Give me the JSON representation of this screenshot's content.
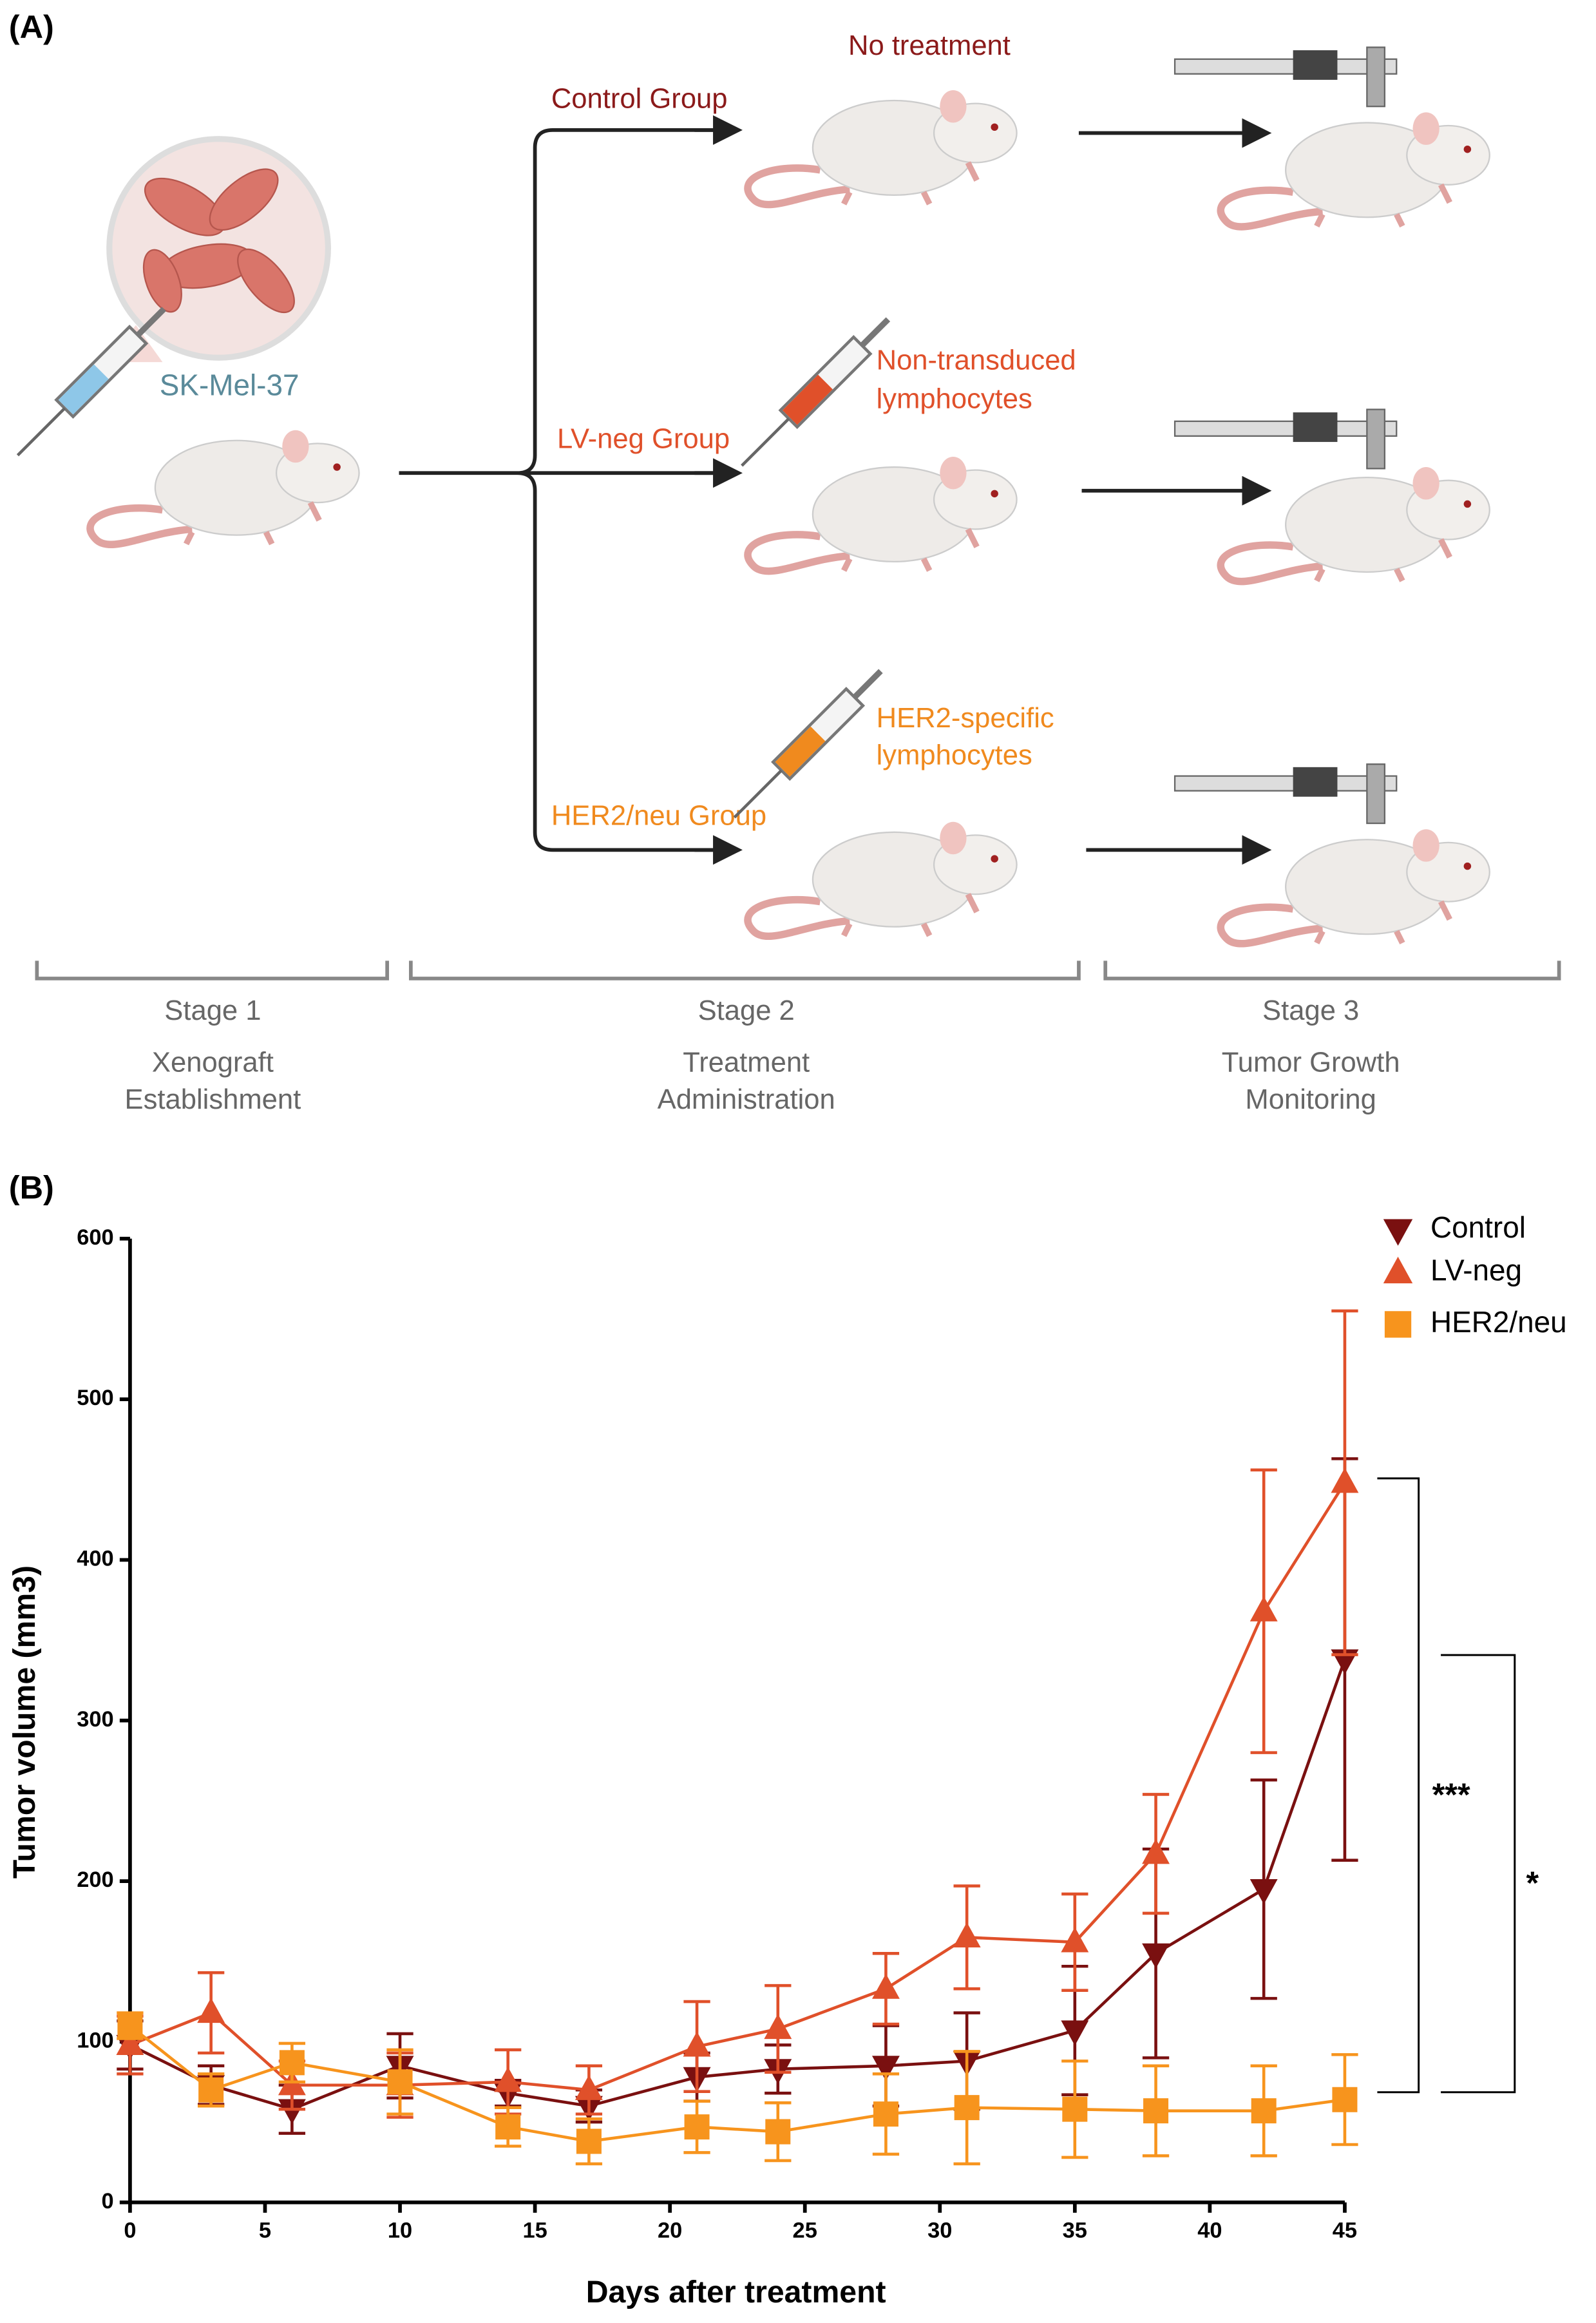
{
  "panel_a": {
    "label": "(A)",
    "cell_line": "SK-Mel-37",
    "groups": [
      {
        "name": "Control Group",
        "treatment": [
          "No treatment"
        ]
      },
      {
        "name": "LV-neg Group",
        "treatment": [
          "Non-transduced",
          "lymphocytes"
        ]
      },
      {
        "name": "HER2/neu Group",
        "treatment": [
          "HER2-specific",
          "lymphocytes"
        ]
      }
    ],
    "stages": [
      {
        "stage": "Stage 1",
        "description": [
          "Xenograft",
          "Establishment"
        ]
      },
      {
        "stage": "Stage 2",
        "description": [
          "Treatment",
          "Administration"
        ]
      },
      {
        "stage": "Stage 3",
        "description": [
          "Tumor Growth",
          "Monitoring"
        ]
      }
    ]
  },
  "chart_data": {
    "type": "line",
    "panel_label": "(B)",
    "xlabel": "Days after treatment",
    "ylabel": "Tumor volume (mm3)",
    "x": [
      0,
      3,
      6,
      10,
      14,
      17,
      21,
      24,
      28,
      31,
      35,
      38,
      42,
      45
    ],
    "series": [
      {
        "name": "Control",
        "color": "#7a1010",
        "marker": "triangle-down",
        "values": [
          98,
          73,
          58,
          85,
          68,
          60,
          78,
          83,
          85,
          88,
          107,
          155,
          195,
          338
        ],
        "errors": [
          15,
          12,
          15,
          20,
          8,
          10,
          15,
          15,
          25,
          30,
          40,
          65,
          68,
          125
        ]
      },
      {
        "name": "LV-neg",
        "color": "#e0502a",
        "marker": "triangle-up",
        "values": [
          98,
          118,
          73,
          73,
          75,
          70,
          97,
          108,
          133,
          165,
          162,
          217,
          368,
          448
        ],
        "errors": [
          18,
          25,
          15,
          20,
          20,
          15,
          28,
          27,
          22,
          32,
          30,
          37,
          88,
          107
        ]
      },
      {
        "name": "HER2/neu",
        "color": "#f7941d",
        "marker": "square",
        "values": [
          110,
          70,
          87,
          75,
          47,
          38,
          47,
          44,
          55,
          59,
          58,
          57,
          57,
          64
        ],
        "errors": [
          8,
          10,
          12,
          20,
          12,
          14,
          16,
          18,
          25,
          35,
          30,
          28,
          28,
          28
        ]
      }
    ],
    "xlim": [
      0,
      45
    ],
    "xticks": [
      0,
      5,
      10,
      15,
      20,
      25,
      30,
      35,
      40,
      45
    ],
    "ylim": [
      0,
      600
    ],
    "yticks": [
      0,
      100,
      200,
      300,
      400,
      500,
      600
    ],
    "legend": "upper right",
    "significance": [
      {
        "label": "***",
        "between": [
          "LV-neg",
          "HER2/neu"
        ]
      },
      {
        "label": "*",
        "between": [
          "Control",
          "HER2/neu"
        ]
      }
    ]
  }
}
